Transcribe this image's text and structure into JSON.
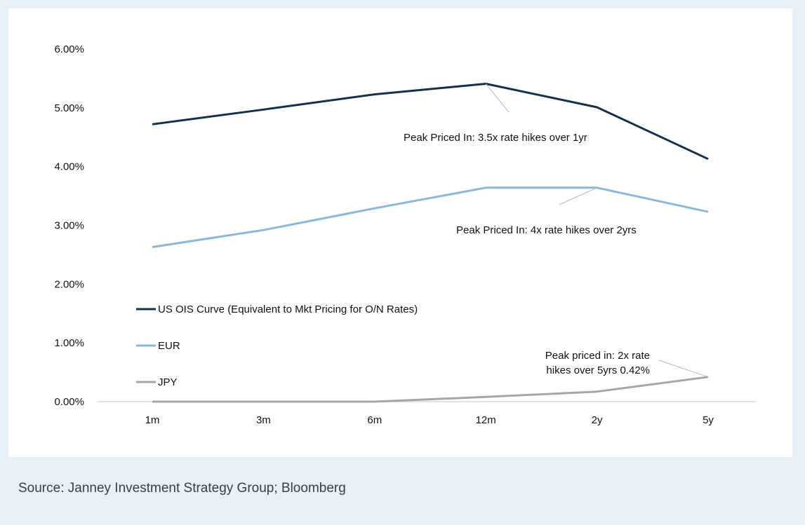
{
  "source": "Source: Janney Investment Strategy Group; Bloomberg",
  "chart_data": {
    "type": "line",
    "title": "",
    "xlabel": "",
    "ylabel": "",
    "categories": [
      "1m",
      "3m",
      "6m",
      "12m",
      "2y",
      "5y"
    ],
    "ylim": [
      0,
      6
    ],
    "y_ticks": [
      "0.00%",
      "1.00%",
      "2.00%",
      "3.00%",
      "4.00%",
      "5.00%",
      "6.00%"
    ],
    "grid": false,
    "legend_position": "left",
    "series": [
      {
        "name": "US OIS Curve (Equivalent to Mkt Pricing for O/N Rates)",
        "color": "#13304d",
        "values": [
          4.72,
          4.97,
          5.23,
          5.41,
          5.01,
          4.13
        ]
      },
      {
        "name": "EUR",
        "color": "#8ab8dc",
        "values": [
          2.63,
          2.92,
          3.29,
          3.64,
          3.64,
          3.23
        ]
      },
      {
        "name": "JPY",
        "color": "#a3a6aa",
        "values": [
          0.0,
          0.0,
          0.0,
          0.08,
          0.17,
          0.42
        ]
      }
    ],
    "annotations": [
      {
        "lines": [
          "Peak Priced In: 3.5x rate hikes over 1yr"
        ],
        "target_series": 0,
        "target_index": 3
      },
      {
        "lines": [
          "Peak Priced In: 4x rate hikes over 2yrs"
        ],
        "target_series": 1,
        "target_index": 4
      },
      {
        "lines": [
          "Peak priced in: 2x rate",
          "hikes over 5yrs 0.42%"
        ],
        "target_series": 2,
        "target_index": 5
      }
    ]
  }
}
